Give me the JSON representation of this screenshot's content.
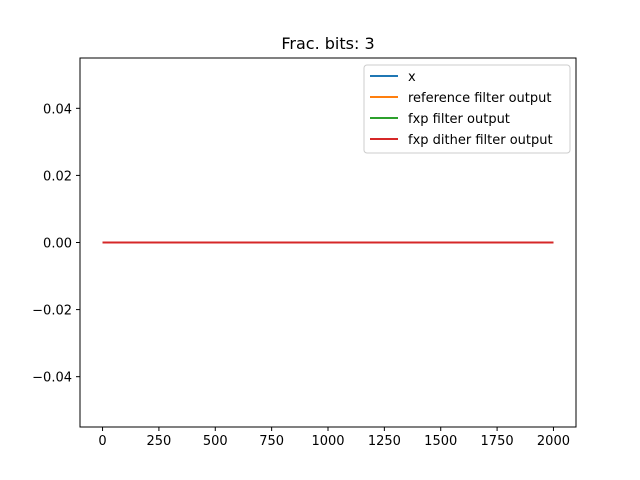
{
  "chart_data": {
    "type": "line",
    "title": "Frac. bits: 3",
    "xlabel": "",
    "ylabel": "",
    "xlim": [
      -100,
      2100
    ],
    "ylim": [
      -0.055,
      0.055
    ],
    "x_ticks": [
      0,
      250,
      500,
      750,
      1000,
      1250,
      1500,
      1750,
      2000
    ],
    "x_tick_labels": [
      "0",
      "250",
      "500",
      "750",
      "1000",
      "1250",
      "1500",
      "1750",
      "2000"
    ],
    "y_ticks": [
      -0.04,
      -0.02,
      0.0,
      0.02,
      0.04
    ],
    "y_tick_labels": [
      "−0.04",
      "−0.02",
      "0.00",
      "0.02",
      "0.04"
    ],
    "grid": false,
    "legend_position": "top-right",
    "x": [
      0,
      2000
    ],
    "series": [
      {
        "name": "x",
        "color": "#1f77b4",
        "values": [
          0,
          0
        ]
      },
      {
        "name": "reference filter output",
        "color": "#ff7f0e",
        "values": [
          0,
          0
        ]
      },
      {
        "name": "fxp filter output",
        "color": "#2ca02c",
        "values": [
          0,
          0
        ]
      },
      {
        "name": "fxp dither filter output",
        "color": "#d62728",
        "values": [
          0,
          0
        ]
      }
    ]
  }
}
